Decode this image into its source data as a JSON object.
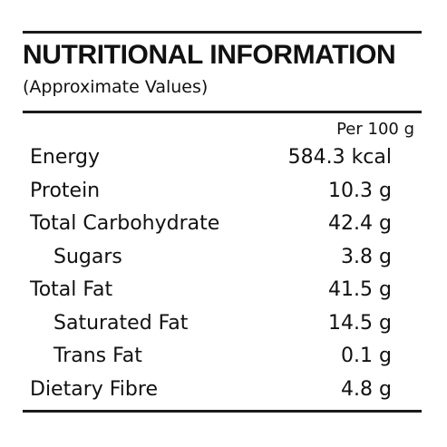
{
  "panel": {
    "title": "NUTRITIONAL INFORMATION",
    "subtitle": "(Approximate Values)",
    "per_header": "Per 100 g"
  },
  "nutrients": [
    {
      "name": "Energy",
      "value": "584.3 kcal",
      "indent": false
    },
    {
      "name": "Protein",
      "value": "10.3 g",
      "indent": false
    },
    {
      "name": "Total Carbohydrate",
      "value": "42.4 g",
      "indent": false
    },
    {
      "name": "Sugars",
      "value": "3.8 g",
      "indent": true
    },
    {
      "name": "Total Fat",
      "value": "41.5 g",
      "indent": false
    },
    {
      "name": "Saturated Fat",
      "value": "14.5 g",
      "indent": true
    },
    {
      "name": "Trans Fat",
      "value": "0.1 g",
      "indent": true
    },
    {
      "name": "Dietary Fibre",
      "value": "4.8 g",
      "indent": false
    }
  ]
}
